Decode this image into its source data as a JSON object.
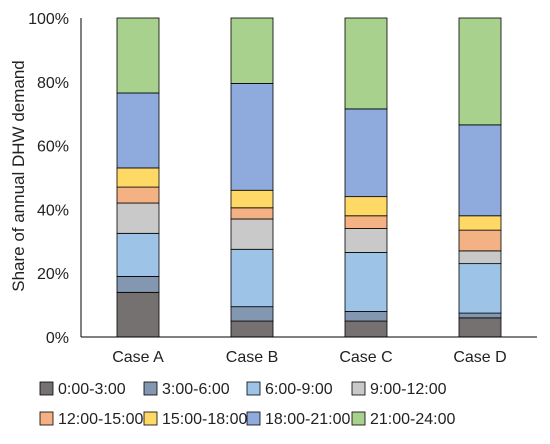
{
  "chart_data": {
    "type": "bar",
    "stacked": true,
    "percent": true,
    "categories": [
      "Case A",
      "Case B",
      "Case C",
      "Case D"
    ],
    "ylabel": "Share of annual DHW demand",
    "xlabel": "",
    "ylim": [
      0,
      100
    ],
    "yticks": [
      "0%",
      "20%",
      "40%",
      "60%",
      "80%",
      "100%"
    ],
    "grid": false,
    "legend_position": "bottom",
    "series": [
      {
        "name": "0:00-3:00",
        "color": "#757171",
        "values": [
          14,
          5,
          5,
          6
        ]
      },
      {
        "name": "3:00-6:00",
        "color": "#8497B0",
        "values": [
          5,
          4.5,
          3,
          1.5
        ]
      },
      {
        "name": "6:00-9:00",
        "color": "#9DC3E6",
        "values": [
          13.5,
          18,
          18.5,
          15.5
        ]
      },
      {
        "name": "9:00-12:00",
        "color": "#C9C9C9",
        "values": [
          9.5,
          9.5,
          7.5,
          4
        ]
      },
      {
        "name": "12:00-15:00",
        "color": "#F4B183",
        "values": [
          5,
          3.5,
          4,
          6.5
        ]
      },
      {
        "name": "15:00-18:00",
        "color": "#FFD966",
        "values": [
          6,
          5.5,
          6,
          4.5
        ]
      },
      {
        "name": "18:00-21:00",
        "color": "#8FAADC",
        "values": [
          23.5,
          33.5,
          27.5,
          28.5
        ]
      },
      {
        "name": "21:00-24:00",
        "color": "#A9D18E",
        "values": [
          23.5,
          20.5,
          28.5,
          33.5
        ]
      }
    ]
  }
}
